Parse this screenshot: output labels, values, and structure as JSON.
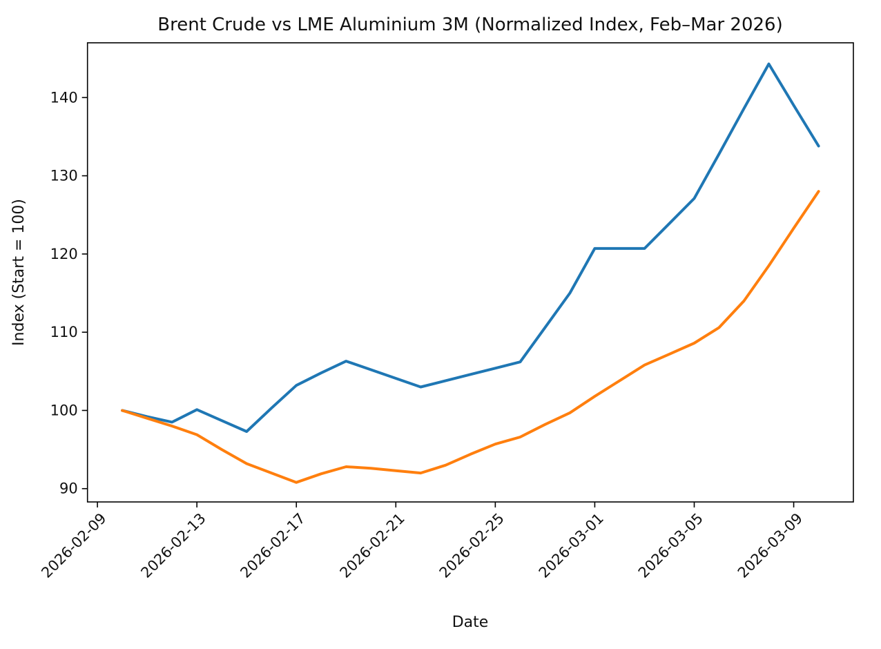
{
  "figure": {
    "background": "#ffffff",
    "title": "Brent Crude vs LME Aluminium 3M (Normalized Index, Feb–Mar 2026)"
  },
  "chart_data": {
    "type": "line",
    "title": "Brent Crude vs LME Aluminium 3M (Normalized Index, Feb–Mar 2026)",
    "xlabel": "Date",
    "ylabel": "Index (Start = 100)",
    "grid": false,
    "legend": "none",
    "x": [
      "2026-02-10",
      "2026-02-11",
      "2026-02-12",
      "2026-02-13",
      "2026-02-14",
      "2026-02-15",
      "2026-02-16",
      "2026-02-17",
      "2026-02-18",
      "2026-02-19",
      "2026-02-20",
      "2026-02-21",
      "2026-02-22",
      "2026-02-23",
      "2026-02-24",
      "2026-02-25",
      "2026-02-26",
      "2026-02-27",
      "2026-02-28",
      "2026-03-01",
      "2026-03-02",
      "2026-03-03",
      "2026-03-04",
      "2026-03-05",
      "2026-03-06",
      "2026-03-07",
      "2026-03-08",
      "2026-03-09",
      "2026-03-10"
    ],
    "series": [
      {
        "name": "Brent Crude",
        "color": "#1f77b4",
        "values": [
          100.0,
          99.2,
          98.5,
          100.1,
          98.7,
          97.3,
          100.3,
          103.2,
          104.8,
          106.3,
          105.2,
          104.1,
          103.0,
          103.8,
          104.6,
          105.4,
          106.2,
          110.6,
          115.0,
          120.7,
          120.7,
          120.7,
          123.9,
          127.1,
          132.8,
          138.6,
          144.3,
          139.0,
          133.8
        ]
      },
      {
        "name": "LME Aluminium 3M",
        "color": "#ff7f0e",
        "values": [
          100.0,
          99.0,
          98.0,
          96.9,
          95.0,
          93.2,
          92.0,
          90.8,
          91.9,
          92.8,
          92.6,
          92.3,
          92.0,
          93.0,
          94.4,
          95.7,
          96.6,
          98.2,
          99.7,
          101.8,
          103.8,
          105.8,
          107.2,
          108.6,
          110.6,
          114.0,
          118.5,
          123.3,
          128.0
        ]
      }
    ],
    "x_ticks": [
      "2026-02-09",
      "2026-02-13",
      "2026-02-17",
      "2026-02-21",
      "2026-02-25",
      "2026-03-01",
      "2026-03-05",
      "2026-03-09"
    ],
    "y_ticks": [
      90,
      100,
      110,
      120,
      130,
      140
    ],
    "xlim_days": [
      -0.4,
      30.4
    ],
    "ylim": [
      88.3,
      147.0
    ],
    "x_tick_rotation_deg": 45,
    "axis_color": "#000000"
  }
}
